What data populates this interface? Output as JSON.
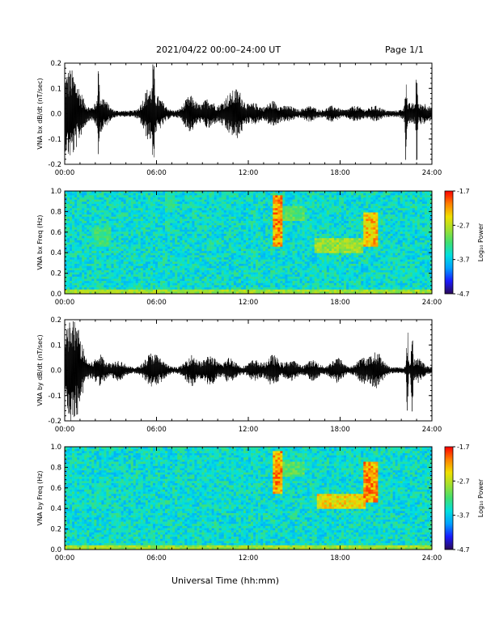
{
  "header": {
    "title": "2021/04/22  00:00–24:00 UT",
    "page": "Page 1/1"
  },
  "x_axis_label": "Universal Time (hh:mm)",
  "colors": {
    "background": "#ffffff",
    "axis": "#000000",
    "colormap": [
      "#2a0a57",
      "#1a1aff",
      "#00a0ff",
      "#00e0e0",
      "#40e070",
      "#a0e030",
      "#f0e000",
      "#ff8000",
      "#ff0000"
    ]
  },
  "chart_data": [
    {
      "type": "line",
      "name": "bx-dbdt",
      "ylabel": "VNA bx dB/dt (nT/sec)",
      "xlim": [
        0,
        24
      ],
      "ylim": [
        -0.2,
        0.2
      ],
      "yticks": [
        "0.2",
        "0.1",
        "0.0",
        "-0.1",
        "-0.2"
      ],
      "xticks": [
        "00:00",
        "06:00",
        "12:00",
        "18:00",
        "24:00"
      ],
      "envelope_hours": [
        0.1,
        0.5,
        1.0,
        2.2,
        2.4,
        5.5,
        5.8,
        6.2,
        8.2,
        9.4,
        10.6,
        11.3,
        12.4,
        13.6,
        14.6,
        16.0,
        17.5,
        19.0,
        20.3,
        22.3,
        22.6,
        23.0,
        23.5
      ],
      "envelope_amp": [
        0.1,
        0.09,
        0.05,
        0.21,
        0.06,
        0.09,
        0.21,
        0.04,
        0.06,
        0.05,
        0.05,
        0.08,
        0.03,
        0.04,
        0.02,
        0.02,
        0.02,
        0.02,
        0.02,
        0.21,
        0.03,
        0.21,
        0.03
      ]
    },
    {
      "type": "heatmap",
      "name": "bx-spectrogram",
      "ylabel": "VNA bx Freq (Hz)",
      "xlim": [
        0,
        24
      ],
      "ylim": [
        0.0,
        1.0
      ],
      "yticks": [
        "1.0",
        "0.8",
        "0.6",
        "0.4",
        "0.2",
        "0.0"
      ],
      "xticks": [
        "00:00",
        "06:00",
        "12:00",
        "18:00",
        "24:00"
      ],
      "colorbar": {
        "label": "Log₁₀ Power",
        "ticks": [
          "-1.7",
          "-2.7",
          "-3.7",
          "-4.7"
        ],
        "range": [
          -4.7,
          -1.7
        ]
      },
      "features": [
        {
          "t0": 2.0,
          "t1": 3.0,
          "f0": 0.45,
          "f1": 0.65,
          "level": 0.55
        },
        {
          "t0": 6.6,
          "t1": 7.2,
          "f0": 0.8,
          "f1": 1.0,
          "level": 0.5
        },
        {
          "t0": 13.6,
          "t1": 14.2,
          "f0": 0.45,
          "f1": 0.95,
          "level": 0.95
        },
        {
          "t0": 14.2,
          "t1": 15.6,
          "f0": 0.7,
          "f1": 0.85,
          "level": 0.6
        },
        {
          "t0": 16.3,
          "t1": 19.5,
          "f0": 0.4,
          "f1": 0.55,
          "level": 0.7
        },
        {
          "t0": 19.5,
          "t1": 20.4,
          "f0": 0.45,
          "f1": 0.8,
          "level": 0.9
        }
      ]
    },
    {
      "type": "line",
      "name": "by-dbdt",
      "ylabel": "VNA by dB/dt (nT/sec)",
      "xlim": [
        0,
        24
      ],
      "ylim": [
        -0.2,
        0.2
      ],
      "yticks": [
        "0.2",
        "0.1",
        "0.0",
        "-0.1",
        "-0.2"
      ],
      "xticks": [
        "00:00",
        "06:00",
        "12:00",
        "18:00",
        "24:00"
      ],
      "envelope_hours": [
        0.2,
        0.6,
        1.0,
        2.3,
        3.5,
        5.6,
        6.2,
        8.3,
        9.5,
        10.8,
        12.4,
        13.6,
        14.8,
        16.2,
        17.8,
        19.5,
        20.4,
        22.4,
        22.7,
        23.0
      ],
      "envelope_amp": [
        0.1,
        0.12,
        0.06,
        0.05,
        0.03,
        0.05,
        0.03,
        0.05,
        0.05,
        0.04,
        0.03,
        0.05,
        0.03,
        0.03,
        0.04,
        0.04,
        0.06,
        0.18,
        0.2,
        0.04
      ]
    },
    {
      "type": "heatmap",
      "name": "by-spectrogram",
      "ylabel": "VNA by Freq (Hz)",
      "xlim": [
        0,
        24
      ],
      "ylim": [
        0.0,
        1.0
      ],
      "yticks": [
        "1.0",
        "0.8",
        "0.6",
        "0.4",
        "0.2",
        "0.0"
      ],
      "xticks": [
        "00:00",
        "06:00",
        "12:00",
        "18:00",
        "24:00"
      ],
      "colorbar": {
        "label": "Log₁₀ Power",
        "ticks": [
          "-1.7",
          "-2.7",
          "-3.7",
          "-4.7"
        ],
        "range": [
          -4.7,
          -1.7
        ]
      },
      "features": [
        {
          "t0": 2.1,
          "t1": 2.8,
          "f0": 0.5,
          "f1": 0.65,
          "level": 0.45
        },
        {
          "t0": 13.6,
          "t1": 14.3,
          "f0": 0.55,
          "f1": 0.95,
          "level": 0.95
        },
        {
          "t0": 14.3,
          "t1": 15.6,
          "f0": 0.7,
          "f1": 0.85,
          "level": 0.6
        },
        {
          "t0": 16.5,
          "t1": 19.6,
          "f0": 0.4,
          "f1": 0.55,
          "level": 0.85
        },
        {
          "t0": 19.6,
          "t1": 20.4,
          "f0": 0.45,
          "f1": 0.85,
          "level": 0.95
        }
      ]
    }
  ]
}
